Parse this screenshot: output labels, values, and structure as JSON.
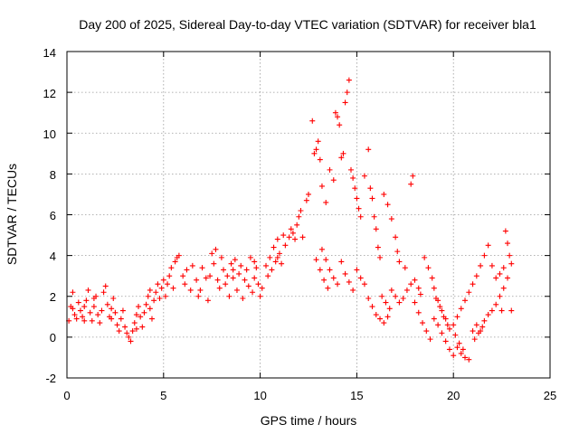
{
  "chart_data": {
    "type": "scatter",
    "title": "Day 200 of 2025, Sidereal Day-to-day VTEC variation (SDTVAR) for receiver bla1",
    "xlabel": "GPS time / hours",
    "ylabel": "SDTVAR / TECUs",
    "xlim": [
      0,
      25
    ],
    "ylim": [
      -2,
      14
    ],
    "xticks": [
      "0",
      "5",
      "10",
      "15",
      "20",
      "25"
    ],
    "yticks": [
      "-2",
      "0",
      "2",
      "4",
      "6",
      "8",
      "10",
      "12",
      "14"
    ],
    "grid": true,
    "marker": "plus",
    "color": "#ff0000",
    "series": [
      {
        "name": "SDTVAR",
        "points": [
          [
            0.1,
            0.8
          ],
          [
            0.2,
            1.5
          ],
          [
            0.3,
            2.2
          ],
          [
            0.4,
            1.1
          ],
          [
            0.5,
            0.9
          ],
          [
            0.6,
            1.7
          ],
          [
            0.7,
            1.3
          ],
          [
            0.8,
            1.0
          ],
          [
            0.9,
            1.5
          ],
          [
            1.0,
            1.8
          ],
          [
            1.1,
            2.3
          ],
          [
            1.2,
            1.2
          ],
          [
            1.3,
            0.8
          ],
          [
            1.4,
            1.5
          ],
          [
            1.5,
            2.0
          ],
          [
            1.6,
            1.1
          ],
          [
            1.7,
            0.7
          ],
          [
            1.8,
            1.3
          ],
          [
            1.9,
            2.2
          ],
          [
            2.0,
            2.5
          ],
          [
            2.1,
            1.6
          ],
          [
            2.2,
            1.0
          ],
          [
            2.3,
            1.4
          ],
          [
            2.4,
            1.9
          ],
          [
            2.5,
            1.2
          ],
          [
            2.6,
            0.6
          ],
          [
            2.7,
            0.3
          ],
          [
            2.8,
            0.9
          ],
          [
            2.9,
            1.3
          ],
          [
            3.0,
            0.5
          ],
          [
            3.1,
            0.2
          ],
          [
            3.2,
            0.0
          ],
          [
            3.3,
            -0.2
          ],
          [
            3.4,
            0.3
          ],
          [
            3.5,
            0.7
          ],
          [
            3.6,
            1.1
          ],
          [
            3.7,
            1.5
          ],
          [
            3.8,
            1.0
          ],
          [
            3.9,
            0.5
          ],
          [
            4.0,
            1.2
          ],
          [
            4.1,
            1.6
          ],
          [
            4.2,
            2.0
          ],
          [
            4.3,
            1.4
          ],
          [
            4.4,
            0.9
          ],
          [
            4.5,
            1.8
          ],
          [
            4.6,
            2.2
          ],
          [
            4.7,
            2.6
          ],
          [
            4.8,
            1.9
          ],
          [
            4.9,
            2.4
          ],
          [
            5.0,
            2.8
          ],
          [
            5.1,
            2.0
          ],
          [
            5.2,
            2.6
          ],
          [
            5.3,
            3.0
          ],
          [
            5.4,
            3.4
          ],
          [
            5.5,
            2.4
          ],
          [
            5.6,
            3.7
          ],
          [
            5.7,
            3.9
          ],
          [
            5.8,
            4.0
          ],
          [
            6.0,
            3.0
          ],
          [
            6.2,
            3.3
          ],
          [
            6.4,
            2.3
          ],
          [
            6.5,
            3.5
          ],
          [
            6.7,
            2.8
          ],
          [
            6.8,
            2.0
          ],
          [
            6.9,
            2.3
          ],
          [
            7.0,
            3.4
          ],
          [
            7.2,
            2.9
          ],
          [
            7.3,
            1.8
          ],
          [
            7.4,
            3.0
          ],
          [
            7.5,
            4.1
          ],
          [
            7.6,
            3.6
          ],
          [
            7.7,
            4.3
          ],
          [
            7.8,
            2.8
          ],
          [
            7.9,
            2.4
          ],
          [
            8.0,
            3.9
          ],
          [
            8.1,
            3.3
          ],
          [
            8.2,
            2.6
          ],
          [
            8.3,
            3.0
          ],
          [
            8.4,
            2.0
          ],
          [
            8.5,
            3.6
          ],
          [
            8.6,
            2.9
          ],
          [
            8.7,
            3.8
          ],
          [
            8.8,
            2.3
          ],
          [
            8.9,
            3.1
          ],
          [
            9.0,
            3.5
          ],
          [
            9.1,
            1.9
          ],
          [
            9.2,
            2.8
          ],
          [
            9.3,
            3.3
          ],
          [
            9.4,
            2.5
          ],
          [
            9.5,
            3.9
          ],
          [
            9.6,
            2.2
          ],
          [
            9.7,
            2.9
          ],
          [
            9.8,
            3.4
          ],
          [
            9.9,
            2.6
          ],
          [
            10.0,
            2.0
          ],
          [
            10.1,
            2.4
          ],
          [
            10.3,
            3.5
          ],
          [
            10.4,
            3.0
          ],
          [
            10.5,
            3.9
          ],
          [
            10.6,
            3.3
          ],
          [
            10.7,
            4.4
          ],
          [
            10.8,
            3.7
          ],
          [
            10.9,
            4.8
          ],
          [
            11.0,
            4.1
          ],
          [
            11.1,
            3.6
          ],
          [
            11.2,
            5.0
          ],
          [
            11.3,
            4.5
          ],
          [
            11.5,
            4.9
          ],
          [
            11.6,
            5.3
          ],
          [
            11.8,
            4.8
          ],
          [
            11.9,
            5.5
          ],
          [
            12.0,
            5.9
          ],
          [
            12.1,
            6.2
          ],
          [
            12.2,
            4.9
          ],
          [
            12.4,
            6.7
          ],
          [
            12.5,
            7.0
          ],
          [
            12.7,
            10.6
          ],
          [
            12.8,
            9.0
          ],
          [
            12.9,
            9.2
          ],
          [
            13.0,
            9.6
          ],
          [
            13.1,
            8.7
          ],
          [
            13.2,
            7.4
          ],
          [
            13.4,
            6.6
          ],
          [
            13.6,
            8.2
          ],
          [
            13.8,
            7.7
          ],
          [
            13.9,
            11.0
          ],
          [
            14.0,
            10.8
          ],
          [
            14.1,
            10.4
          ],
          [
            14.2,
            8.8
          ],
          [
            14.3,
            9.0
          ],
          [
            14.4,
            11.5
          ],
          [
            14.5,
            12.0
          ],
          [
            14.6,
            12.6
          ],
          [
            14.7,
            8.2
          ],
          [
            14.8,
            7.8
          ],
          [
            14.9,
            7.3
          ],
          [
            15.0,
            6.8
          ],
          [
            15.1,
            6.3
          ],
          [
            15.2,
            5.9
          ],
          [
            15.4,
            7.9
          ],
          [
            15.6,
            9.2
          ],
          [
            15.7,
            7.3
          ],
          [
            15.8,
            6.8
          ],
          [
            15.9,
            5.9
          ],
          [
            16.0,
            5.3
          ],
          [
            16.1,
            4.4
          ],
          [
            16.2,
            3.9
          ],
          [
            16.4,
            7.0
          ],
          [
            16.6,
            6.5
          ],
          [
            16.8,
            5.8
          ],
          [
            17.0,
            4.9
          ],
          [
            17.1,
            4.2
          ],
          [
            17.2,
            3.7
          ],
          [
            17.5,
            3.4
          ],
          [
            17.8,
            7.5
          ],
          [
            17.9,
            7.9
          ],
          [
            18.0,
            2.8
          ],
          [
            18.2,
            2.4
          ],
          [
            18.3,
            2.1
          ],
          [
            18.5,
            3.9
          ],
          [
            18.7,
            3.4
          ],
          [
            18.9,
            2.9
          ],
          [
            19.0,
            2.4
          ],
          [
            19.2,
            1.8
          ],
          [
            19.4,
            1.3
          ],
          [
            19.6,
            0.9
          ],
          [
            19.8,
            0.4
          ],
          [
            20.0,
            0.6
          ],
          [
            20.2,
            1.0
          ],
          [
            20.4,
            1.4
          ],
          [
            20.6,
            1.8
          ],
          [
            20.8,
            2.2
          ],
          [
            21.0,
            2.6
          ],
          [
            21.2,
            3.0
          ],
          [
            21.4,
            3.5
          ],
          [
            21.6,
            4.0
          ],
          [
            21.8,
            4.5
          ],
          [
            22.0,
            3.5
          ],
          [
            22.2,
            2.9
          ],
          [
            22.4,
            3.1
          ],
          [
            22.5,
            1.3
          ],
          [
            22.6,
            3.4
          ],
          [
            22.7,
            5.2
          ],
          [
            22.8,
            4.6
          ],
          [
            22.9,
            4.0
          ],
          [
            23.0,
            3.6
          ],
          [
            13.2,
            4.3
          ],
          [
            13.4,
            3.8
          ],
          [
            13.6,
            3.3
          ],
          [
            13.8,
            2.9
          ],
          [
            14.0,
            2.6
          ],
          [
            14.2,
            3.7
          ],
          [
            14.4,
            3.1
          ],
          [
            14.6,
            2.7
          ],
          [
            14.8,
            2.3
          ],
          [
            15.0,
            3.3
          ],
          [
            15.2,
            2.9
          ],
          [
            15.4,
            2.6
          ],
          [
            15.6,
            1.9
          ],
          [
            15.8,
            1.5
          ],
          [
            16.0,
            1.1
          ],
          [
            16.2,
            0.9
          ],
          [
            16.4,
            0.7
          ],
          [
            16.6,
            1.0
          ],
          [
            16.8,
            2.3
          ],
          [
            17.0,
            2.0
          ],
          [
            17.2,
            1.7
          ],
          [
            17.4,
            1.9
          ],
          [
            17.6,
            2.3
          ],
          [
            17.8,
            2.6
          ],
          [
            18.0,
            1.7
          ],
          [
            18.2,
            1.2
          ],
          [
            18.4,
            0.7
          ],
          [
            18.6,
            0.3
          ],
          [
            18.8,
            -0.1
          ],
          [
            19.0,
            0.9
          ],
          [
            19.2,
            0.6
          ],
          [
            19.4,
            0.2
          ],
          [
            19.6,
            -0.2
          ],
          [
            19.8,
            -0.6
          ],
          [
            20.0,
            -0.9
          ],
          [
            20.2,
            -0.5
          ],
          [
            20.4,
            -0.8
          ],
          [
            20.6,
            -1.0
          ],
          [
            20.8,
            -1.1
          ],
          [
            21.0,
            0.3
          ],
          [
            21.2,
            0.6
          ],
          [
            21.4,
            0.3
          ],
          [
            21.6,
            0.8
          ],
          [
            21.8,
            1.1
          ],
          [
            22.0,
            1.3
          ],
          [
            22.2,
            1.6
          ],
          [
            22.4,
            2.0
          ],
          [
            22.6,
            2.4
          ],
          [
            22.8,
            2.9
          ],
          [
            23.0,
            1.3
          ],
          [
            12.9,
            3.8
          ],
          [
            13.1,
            3.3
          ],
          [
            13.3,
            2.8
          ],
          [
            13.5,
            2.4
          ],
          [
            16.3,
            2.0
          ],
          [
            16.5,
            1.7
          ],
          [
            16.7,
            1.4
          ],
          [
            19.1,
            1.9
          ],
          [
            19.3,
            1.5
          ],
          [
            19.5,
            1.0
          ],
          [
            19.7,
            0.6
          ],
          [
            20.1,
            0.1
          ],
          [
            20.3,
            -0.3
          ],
          [
            20.5,
            -0.6
          ],
          [
            21.1,
            -0.1
          ],
          [
            21.3,
            0.2
          ],
          [
            21.5,
            0.5
          ],
          [
            0.3,
            1.4
          ],
          [
            0.9,
            0.8
          ],
          [
            1.4,
            1.9
          ],
          [
            2.3,
            0.9
          ],
          [
            3.6,
            0.4
          ],
          [
            4.3,
            2.3
          ],
          [
            6.1,
            2.6
          ],
          [
            8.6,
            3.3
          ],
          [
            9.7,
            3.7
          ],
          [
            10.9,
            3.9
          ],
          [
            11.7,
            5.1
          ]
        ]
      }
    ]
  }
}
